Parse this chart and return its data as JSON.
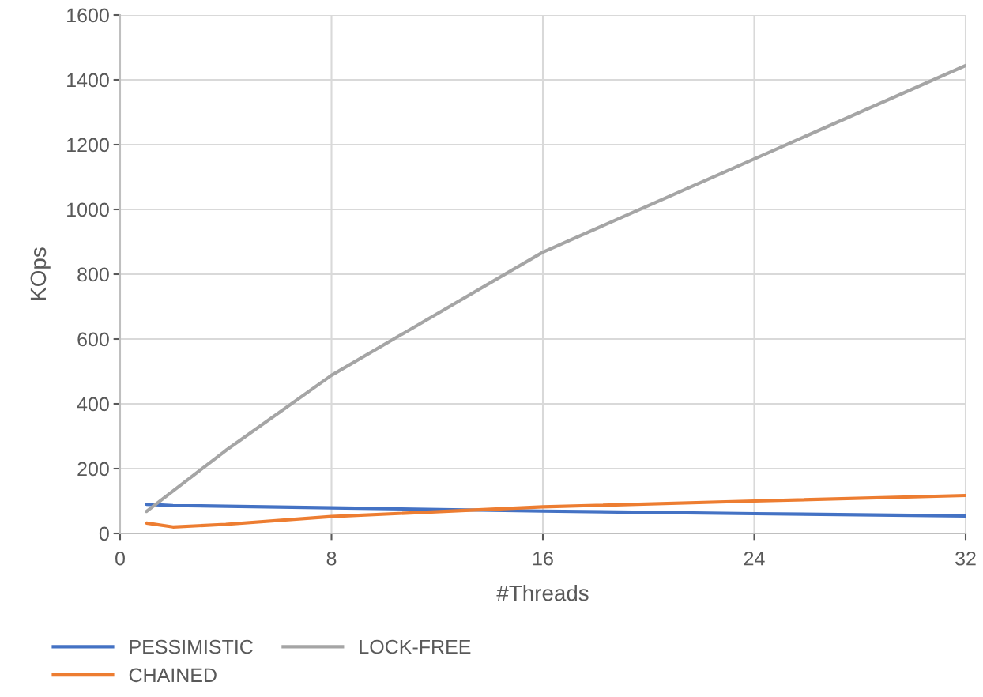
{
  "chart_data": {
    "type": "line",
    "xlabel": "#Threads",
    "ylabel": "KOps",
    "x": [
      1,
      2,
      4,
      8,
      16,
      24,
      32
    ],
    "series": [
      {
        "name": "PESSIMISTIC",
        "color": "#4472c4",
        "values": [
          90,
          86,
          84,
          79,
          69,
          61,
          54
        ]
      },
      {
        "name": "CHAINED",
        "color": "#ed7d31",
        "values": [
          32,
          20,
          28,
          52,
          82,
          100,
          117
        ]
      },
      {
        "name": "LOCK-FREE",
        "color": "#a5a5a5",
        "values": [
          68,
          131,
          256,
          488,
          868,
          1156,
          1444
        ]
      }
    ],
    "xlim": [
      0,
      32
    ],
    "xticks": [
      0,
      8,
      16,
      24,
      32
    ],
    "ylim": [
      0,
      1600
    ],
    "yticks": [
      0,
      200,
      400,
      600,
      800,
      1000,
      1200,
      1400,
      1600
    ],
    "grid": true,
    "legend": "bottom",
    "marker": "none",
    "line_style": "solid"
  }
}
